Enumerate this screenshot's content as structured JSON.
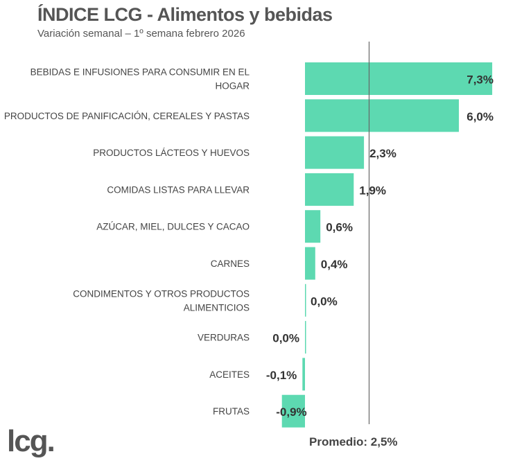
{
  "title": "ÍNDICE LCG - Alimentos y bebidas",
  "subtitle": "Variación semanal – 1º semana febrero 2026",
  "logo": "lcg.",
  "chart_data": {
    "type": "bar",
    "orientation": "horizontal",
    "categories": [
      [
        "BEBIDAS E INFUSIONES PARA CONSUMIR EN EL",
        "HOGAR"
      ],
      [
        "PRODUCTOS DE PANIFICACIÓN, CEREALES Y PASTAS"
      ],
      [
        "PRODUCTOS LÁCTEOS Y HUEVOS"
      ],
      [
        "COMIDAS LISTAS PARA LLEVAR"
      ],
      [
        "AZÚCAR, MIEL, DULCES Y CACAO"
      ],
      [
        "CARNES"
      ],
      [
        "CONDIMENTOS Y OTROS PRODUCTOS",
        "ALIMENTICIOS"
      ],
      [
        "VERDURAS"
      ],
      [
        "ACEITES"
      ],
      [
        "FRUTAS"
      ]
    ],
    "values": [
      7.3,
      6.0,
      2.3,
      1.9,
      0.6,
      0.4,
      0.0,
      0.0,
      -0.1,
      -0.9
    ],
    "data_labels": [
      "7,3%",
      "6,0%",
      "2,3%",
      "1,9%",
      "0,6%",
      "0,4%",
      "0,0%",
      "0,0%",
      "-0,1%",
      "-0,9%"
    ],
    "reference_line": {
      "value": 2.5,
      "label": "Promedio: 2,5%"
    },
    "bar_color": "#5dd9b1",
    "grid": false,
    "legend": "none"
  }
}
